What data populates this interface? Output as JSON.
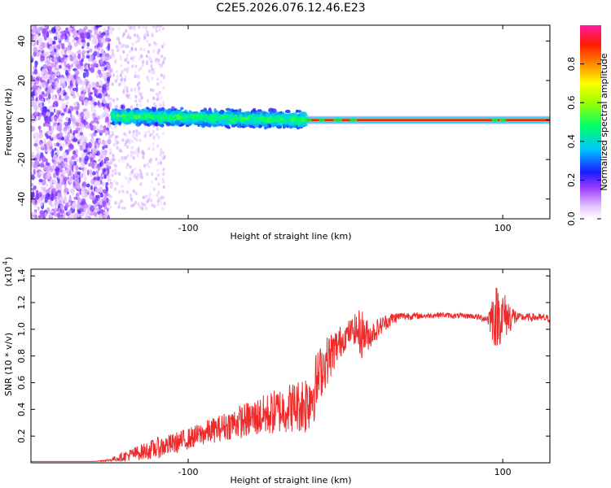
{
  "title": "C2E5.2026.076.12.46.E23",
  "colors": {
    "snr_line": "#ef2a2a",
    "axis": "#000000",
    "background": "#ffffff"
  },
  "chart_data": [
    {
      "type": "heatmap",
      "name": "spectrum",
      "xlabel": "Height of straight line (km)",
      "ylabel": "Frequency (Hz)",
      "xlim": [
        -200,
        130
      ],
      "ylim": [
        -50,
        48
      ],
      "xticks": [
        -100,
        100
      ],
      "xtick_labels": [
        "-100",
        "100"
      ],
      "yticks": [
        -40,
        -20,
        0,
        20,
        40
      ],
      "ytick_labels": [
        "-40",
        "-20",
        "0",
        "20",
        "40"
      ],
      "colorbar": {
        "label": "Normalized spectral amplitude",
        "range": [
          0,
          1
        ],
        "ticks": [
          0.0,
          0.2,
          0.4,
          0.6,
          0.8
        ],
        "tick_labels": [
          "0.0",
          "0.2",
          "0.4",
          "0.6",
          "0.8"
        ],
        "colormap": "rainbow"
      },
      "regions": [
        {
          "description": "broad scattered noise",
          "x_range": [
            -200,
            -150
          ],
          "freq_range": [
            -50,
            48
          ],
          "amplitude": 0.1
        },
        {
          "description": "transition spread",
          "x_range": [
            -150,
            -115
          ],
          "freq_range": [
            -45,
            48
          ],
          "amplitude": 0.05
        },
        {
          "description": "dense band",
          "x_range": [
            -148,
            -25
          ],
          "freq_center_start": 2,
          "freq_center_end": 0,
          "width": 10,
          "amplitude": 0.4
        },
        {
          "description": "narrow tone",
          "x_range": [
            -25,
            130
          ],
          "freq_center": 0,
          "amplitude": 0.9
        }
      ]
    },
    {
      "type": "line",
      "name": "snr",
      "xlabel": "Height of straight line (km)",
      "ylabel": "SNR (10 * v/v)",
      "scale_label": "(x10",
      "scale_exponent": "4",
      "xlim": [
        -200,
        130
      ],
      "ylim": [
        0,
        1.45
      ],
      "xticks": [
        -100,
        100
      ],
      "xtick_labels": [
        "-100",
        "100"
      ],
      "yticks": [
        0.2,
        0.4,
        0.6,
        0.8,
        1.0,
        1.2,
        1.4
      ],
      "ytick_labels": [
        "0.2",
        "0.4",
        "0.6",
        "0.8",
        "1.0",
        "1.2",
        "1.4"
      ],
      "series": [
        {
          "name": "SNR",
          "x": [
            -200,
            -180,
            -160,
            -150,
            -140,
            -130,
            -120,
            -110,
            -100,
            -90,
            -80,
            -70,
            -60,
            -50,
            -40,
            -30,
            -25,
            -20,
            -15,
            -10,
            -5,
            0,
            5,
            10,
            15,
            20,
            25,
            30,
            35,
            40,
            50,
            60,
            70,
            80,
            90,
            95,
            100,
            110,
            120,
            130
          ],
          "y": [
            0.01,
            0.01,
            0.01,
            0.02,
            0.05,
            0.08,
            0.11,
            0.14,
            0.18,
            0.22,
            0.26,
            0.3,
            0.33,
            0.36,
            0.4,
            0.43,
            0.45,
            0.55,
            0.7,
            0.8,
            0.88,
            0.95,
            1.0,
            0.97,
            0.95,
            1.0,
            1.05,
            1.08,
            1.1,
            1.1,
            1.1,
            1.11,
            1.1,
            1.1,
            1.08,
            1.1,
            1.1,
            1.09,
            1.09,
            1.08
          ],
          "noise": [
            0,
            0,
            0,
            0.01,
            0.04,
            0.06,
            0.08,
            0.08,
            0.08,
            0.09,
            0.1,
            0.12,
            0.14,
            0.16,
            0.18,
            0.2,
            0.25,
            0.25,
            0.2,
            0.18,
            0.14,
            0.1,
            0.1,
            0.2,
            0.1,
            0.08,
            0.06,
            0.05,
            0.03,
            0.03,
            0.02,
            0.02,
            0.02,
            0.02,
            0.03,
            0.25,
            0.2,
            0.03,
            0.03,
            0.03
          ]
        }
      ]
    }
  ]
}
